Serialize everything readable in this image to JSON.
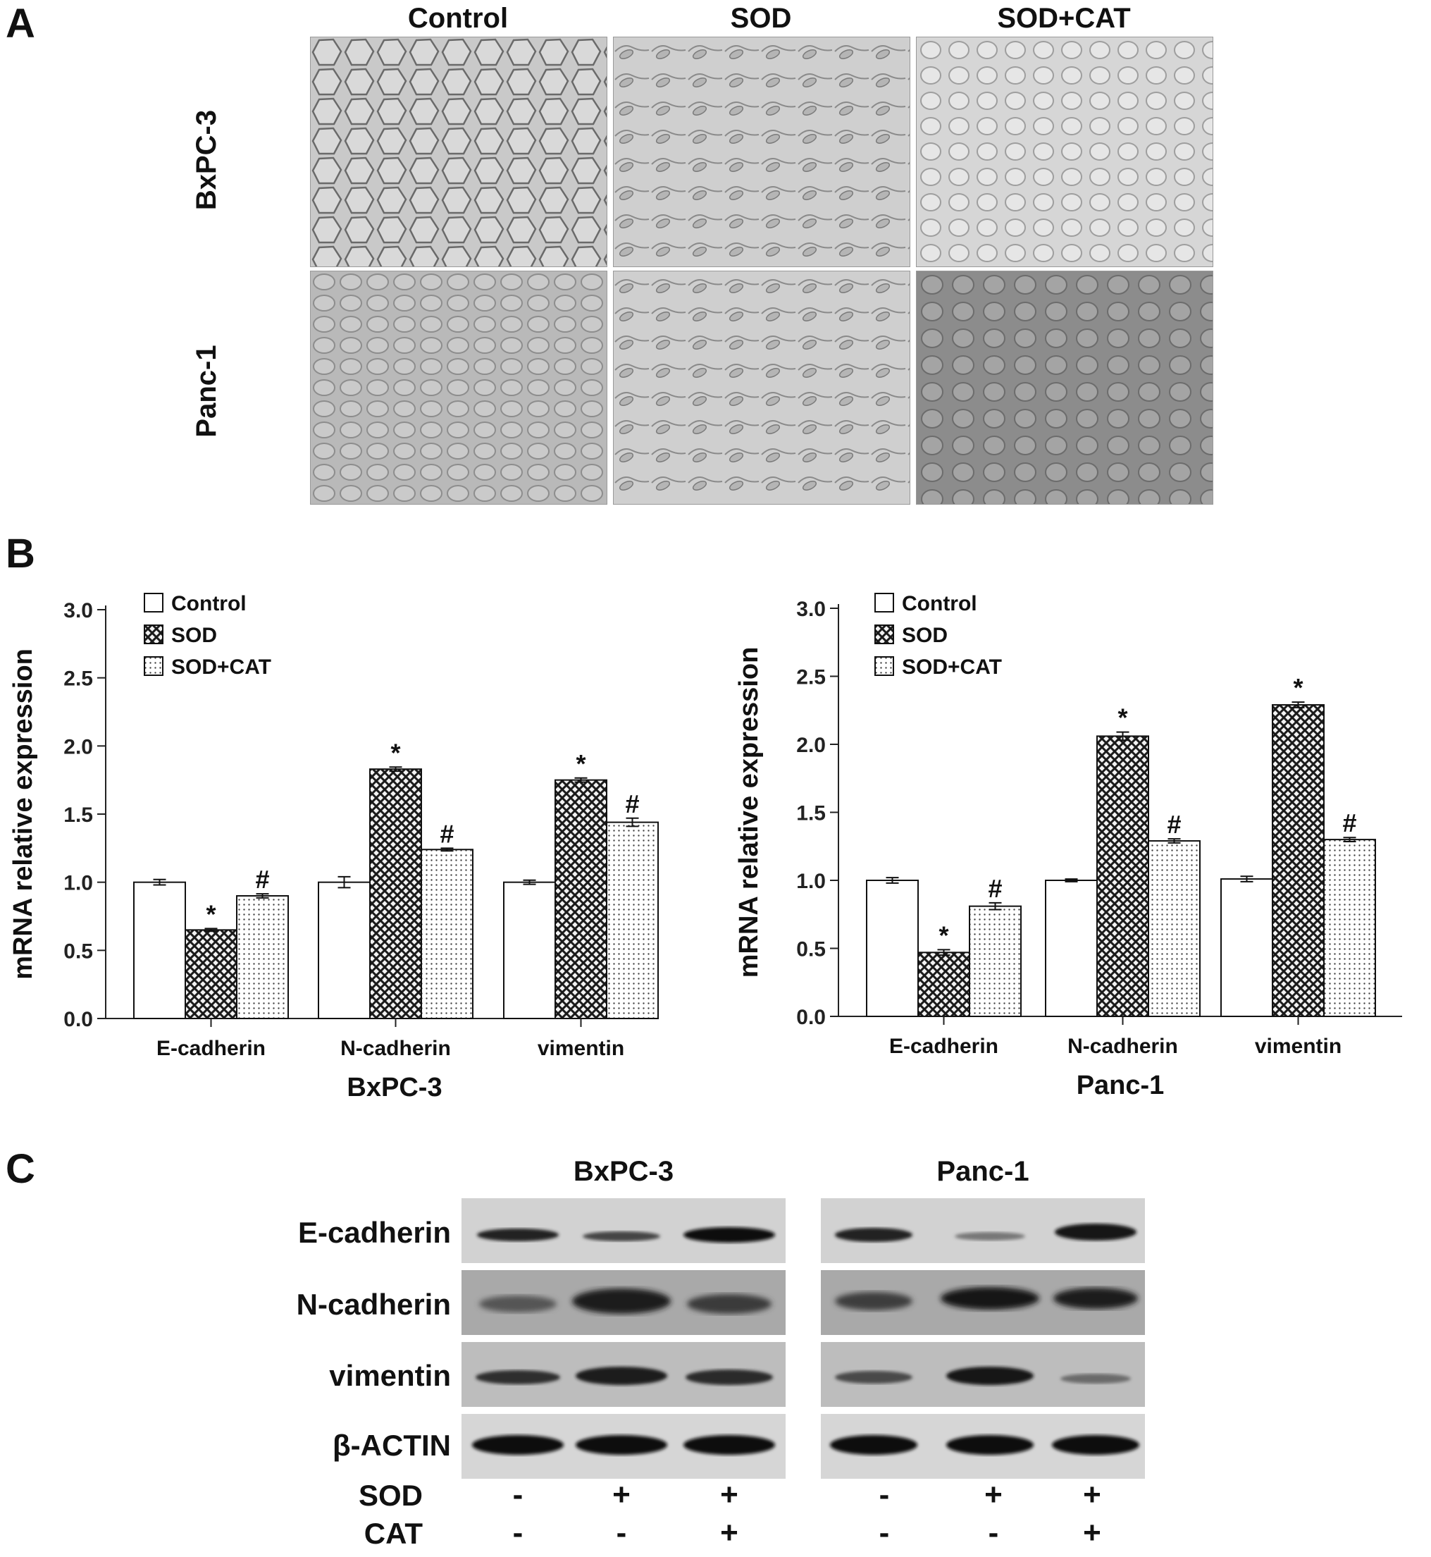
{
  "panel_a": {
    "letter": "A",
    "columns": [
      "Control",
      "SOD",
      "SOD+CAT"
    ],
    "rows": [
      "BxPC-3",
      "Panc-1"
    ]
  },
  "panel_b": {
    "letter": "B"
  },
  "panel_c": {
    "letter": "C",
    "cell_lines": [
      "BxPC-3",
      "Panc-1"
    ],
    "proteins": [
      "E-cadherin",
      "N-cadherin",
      "vimentin",
      "β-ACTIN"
    ],
    "treatments": [
      {
        "label": "SOD",
        "bxpc3": [
          "-",
          "+",
          "+"
        ],
        "panc1": [
          "-",
          "+",
          "+"
        ]
      },
      {
        "label": "CAT",
        "bxpc3": [
          "-",
          "-",
          "+"
        ],
        "panc1": [
          "-",
          "-",
          "+"
        ]
      }
    ]
  },
  "chart_data": [
    {
      "type": "bar",
      "xlabel": "BxPC-3",
      "ylabel": "mRNA relative expression",
      "ylim": [
        0,
        3.0
      ],
      "yticks": [
        "0.0",
        "0.5",
        "1.0",
        "1.5",
        "2.0",
        "2.5",
        "3.0"
      ],
      "categories": [
        "E-cadherin",
        "N-cadherin",
        "vimentin"
      ],
      "legend_position": "top-left",
      "series": [
        {
          "name": "Control",
          "values": [
            1.0,
            1.0,
            1.0
          ],
          "errors": [
            0.02,
            0.04,
            0.015
          ],
          "marks": [
            "",
            "",
            ""
          ]
        },
        {
          "name": "SOD",
          "values": [
            0.65,
            1.83,
            1.75
          ],
          "errors": [
            0.01,
            0.015,
            0.015
          ],
          "marks": [
            "*",
            "*",
            "*"
          ]
        },
        {
          "name": "SOD+CAT",
          "values": [
            0.9,
            1.24,
            1.44
          ],
          "errors": [
            0.015,
            0.01,
            0.03
          ],
          "marks": [
            "#",
            "#",
            "#"
          ]
        }
      ],
      "series_colors": {
        "Control": "#ffffff",
        "SOD": "#3a3a3a",
        "SOD+CAT": "#d9d9d9"
      }
    },
    {
      "type": "bar",
      "xlabel": "Panc-1",
      "ylabel": "mRNA relative expression",
      "ylim": [
        0,
        3.0
      ],
      "yticks": [
        "0.0",
        "0.5",
        "1.0",
        "1.5",
        "2.0",
        "2.5",
        "3.0"
      ],
      "categories": [
        "E-cadherin",
        "N-cadherin",
        "vimentin"
      ],
      "legend_position": "top-left",
      "series": [
        {
          "name": "Control",
          "values": [
            1.0,
            1.0,
            1.01
          ],
          "errors": [
            0.02,
            0.01,
            0.02
          ],
          "marks": [
            "",
            "",
            ""
          ]
        },
        {
          "name": "SOD",
          "values": [
            0.47,
            2.06,
            2.29
          ],
          "errors": [
            0.02,
            0.03,
            0.02
          ],
          "marks": [
            "*",
            "*",
            "*"
          ]
        },
        {
          "name": "SOD+CAT",
          "values": [
            0.81,
            1.29,
            1.3
          ],
          "errors": [
            0.025,
            0.015,
            0.015
          ],
          "marks": [
            "#",
            "#",
            "#"
          ]
        }
      ],
      "series_colors": {
        "Control": "#ffffff",
        "SOD": "#3a3a3a",
        "SOD+CAT": "#d9d9d9"
      }
    }
  ]
}
